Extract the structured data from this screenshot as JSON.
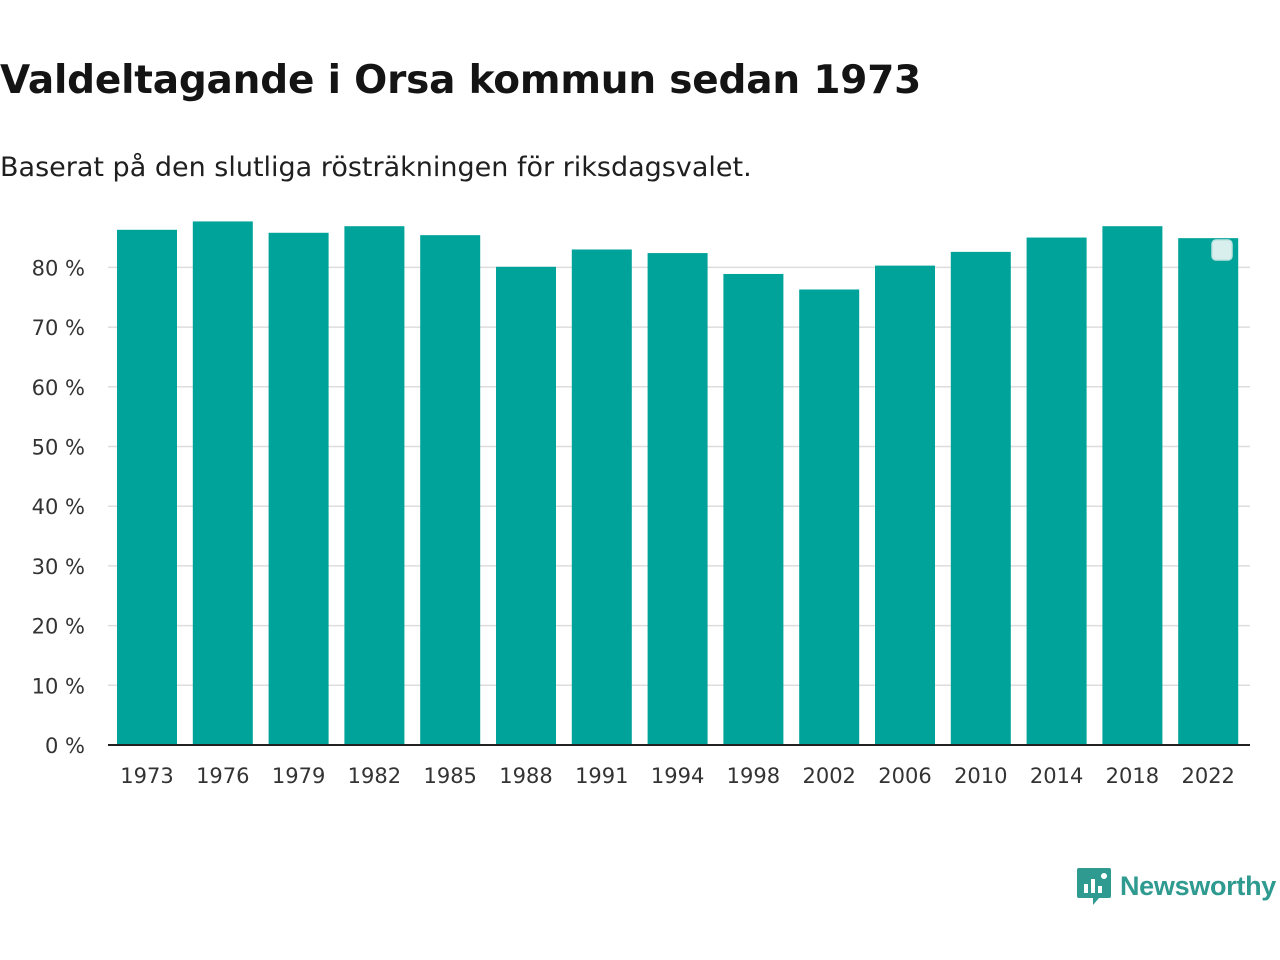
{
  "header": {
    "title": "Valdeltagande i Orsa kommun sedan 1973",
    "subtitle": "Baserat på den slutliga rösträkningen för riksdagsvalet."
  },
  "colors": {
    "bar": "#00a39a",
    "grid": "#dddddd",
    "axis": "#222222",
    "tick_text": "#333333",
    "brand": "#2f9a8f"
  },
  "brand": {
    "name": "Newsworthy",
    "icon": "bar-chart-badge-icon"
  },
  "chart_data": {
    "type": "bar",
    "title": "Valdeltagande i Orsa kommun sedan 1973",
    "subtitle": "Baserat på den slutliga rösträkningen för riksdagsvalet.",
    "xlabel": "",
    "ylabel": "",
    "ylim": [
      0,
      88
    ],
    "yticks": [
      0,
      10,
      20,
      30,
      40,
      50,
      60,
      70,
      80
    ],
    "ytick_suffix": " %",
    "grid": true,
    "categories": [
      "1973",
      "1976",
      "1979",
      "1982",
      "1985",
      "1988",
      "1991",
      "1994",
      "1998",
      "2002",
      "2006",
      "2010",
      "2014",
      "2018",
      "2022"
    ],
    "values": [
      86.3,
      87.7,
      85.8,
      86.9,
      85.4,
      80.1,
      83.0,
      82.4,
      78.9,
      76.3,
      80.3,
      82.6,
      85.0,
      86.9,
      84.9
    ],
    "legend": "top-right"
  }
}
